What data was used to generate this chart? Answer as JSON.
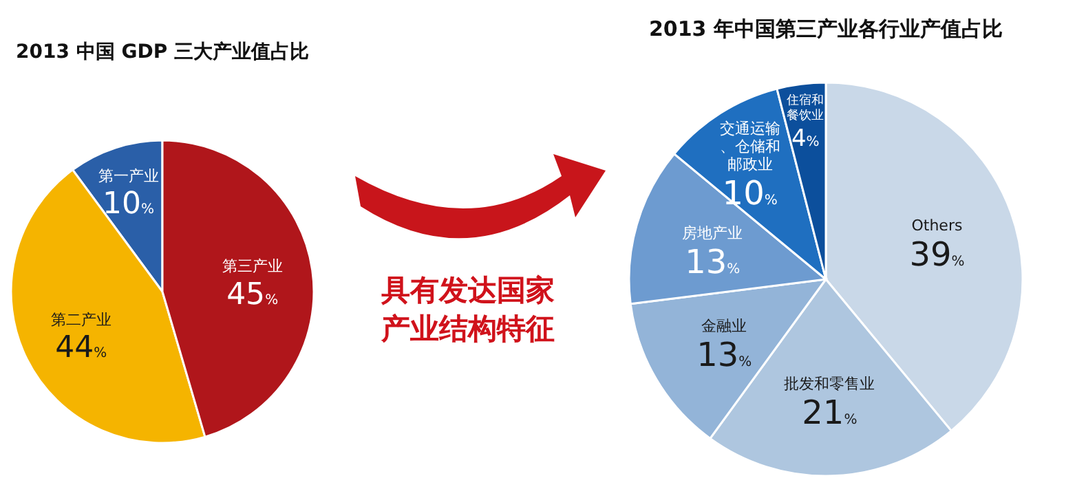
{
  "chart_data": [
    {
      "type": "pie",
      "title": "2013 中国 GDP 三大产业值占比",
      "categories": [
        "第一产业",
        "第二产业",
        "第三产业"
      ],
      "values": [
        10,
        44,
        45
      ],
      "value_labels": [
        "10%",
        "44%",
        "45%"
      ],
      "colors": [
        "#2a5fa8",
        "#f5b400",
        "#b0161b"
      ],
      "annotations": [
        "具有发达国家产业结构特征"
      ]
    },
    {
      "type": "pie",
      "title": "2013 年中国第三产业各行业产值占比",
      "categories": [
        "Others",
        "批发和零售业",
        "金融业",
        "房地产业",
        "交通运输、仓储和邮政业",
        "住宿和餐饮业"
      ],
      "values": [
        39,
        21,
        13,
        13,
        10,
        4
      ],
      "value_labels": [
        "39%",
        "21%",
        "13%",
        "13%",
        "10%",
        "4%"
      ],
      "colors": [
        "#c9d8e8",
        "#aec6df",
        "#93b4d8",
        "#6d9bd0",
        "#1f6fc0",
        "#0c4f9c"
      ]
    }
  ]
}
